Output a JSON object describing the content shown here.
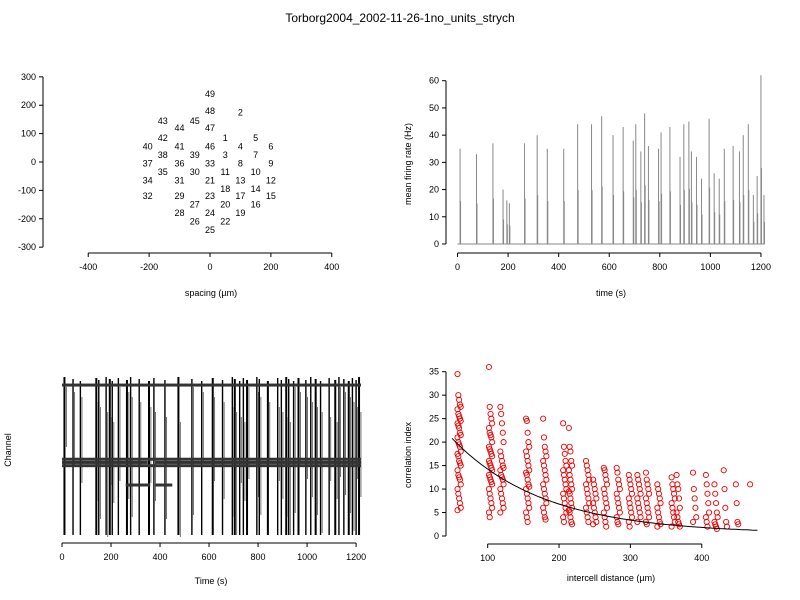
{
  "figure": {
    "title": "Torborg2004_2002-11-26-1no_units_strych"
  },
  "chart_data": [
    {
      "id": "layout",
      "type": "scatter",
      "title": "",
      "xlabel": "spacing (µm)",
      "ylabel": "",
      "xlim": [
        -450,
        450
      ],
      "ylim": [
        -310,
        310
      ],
      "xticks": [
        -400,
        -200,
        0,
        200,
        400
      ],
      "yticks": [
        -300,
        -200,
        -100,
        0,
        100,
        200,
        300
      ],
      "electrodes": [
        {
          "label": "49",
          "x": 0,
          "y": 240
        },
        {
          "label": "48",
          "x": 0,
          "y": 180
        },
        {
          "label": "2",
          "x": 100,
          "y": 175
        },
        {
          "label": "45",
          "x": -50,
          "y": 145
        },
        {
          "label": "43",
          "x": -155,
          "y": 145
        },
        {
          "label": "44",
          "x": -100,
          "y": 120
        },
        {
          "label": "47",
          "x": 0,
          "y": 120
        },
        {
          "label": "1",
          "x": 50,
          "y": 85
        },
        {
          "label": "5",
          "x": 150,
          "y": 85
        },
        {
          "label": "42",
          "x": -155,
          "y": 85
        },
        {
          "label": "40",
          "x": -205,
          "y": 55
        },
        {
          "label": "41",
          "x": -100,
          "y": 55
        },
        {
          "label": "46",
          "x": 0,
          "y": 55
        },
        {
          "label": "4",
          "x": 100,
          "y": 55
        },
        {
          "label": "6",
          "x": 200,
          "y": 55
        },
        {
          "label": "38",
          "x": -155,
          "y": 25
        },
        {
          "label": "39",
          "x": -50,
          "y": 25
        },
        {
          "label": "3",
          "x": 50,
          "y": 25
        },
        {
          "label": "7",
          "x": 150,
          "y": 25
        },
        {
          "label": "37",
          "x": -205,
          "y": -5
        },
        {
          "label": "36",
          "x": -100,
          "y": -5
        },
        {
          "label": "33",
          "x": 0,
          "y": -5
        },
        {
          "label": "8",
          "x": 100,
          "y": -5
        },
        {
          "label": "9",
          "x": 200,
          "y": -5
        },
        {
          "label": "35",
          "x": -155,
          "y": -35
        },
        {
          "label": "30",
          "x": -50,
          "y": -35
        },
        {
          "label": "11",
          "x": 50,
          "y": -35
        },
        {
          "label": "10",
          "x": 150,
          "y": -35
        },
        {
          "label": "34",
          "x": -205,
          "y": -65
        },
        {
          "label": "31",
          "x": -100,
          "y": -65
        },
        {
          "label": "21",
          "x": 0,
          "y": -65
        },
        {
          "label": "13",
          "x": 100,
          "y": -65
        },
        {
          "label": "12",
          "x": 200,
          "y": -65
        },
        {
          "label": "18",
          "x": 50,
          "y": -95
        },
        {
          "label": "14",
          "x": 150,
          "y": -95
        },
        {
          "label": "32",
          "x": -205,
          "y": -120
        },
        {
          "label": "29",
          "x": -100,
          "y": -120
        },
        {
          "label": "23",
          "x": 0,
          "y": -120
        },
        {
          "label": "17",
          "x": 100,
          "y": -120
        },
        {
          "label": "15",
          "x": 200,
          "y": -120
        },
        {
          "label": "27",
          "x": -50,
          "y": -150
        },
        {
          "label": "20",
          "x": 50,
          "y": -150
        },
        {
          "label": "16",
          "x": 150,
          "y": -150
        },
        {
          "label": "28",
          "x": -100,
          "y": -180
        },
        {
          "label": "24",
          "x": 0,
          "y": -180
        },
        {
          "label": "19",
          "x": 100,
          "y": -180
        },
        {
          "label": "26",
          "x": -50,
          "y": -210
        },
        {
          "label": "22",
          "x": 50,
          "y": -210
        },
        {
          "label": "25",
          "x": 0,
          "y": -240
        }
      ]
    },
    {
      "id": "rate",
      "type": "line",
      "title": "",
      "xlabel": "time (s)",
      "ylabel": "mean firing rate (Hz)",
      "xlim": [
        -10,
        1220
      ],
      "ylim": [
        0,
        61
      ],
      "xticks": [
        0,
        200,
        400,
        600,
        800,
        1000,
        1200
      ],
      "yticks": [
        0,
        10,
        20,
        30,
        40,
        50,
        60
      ],
      "color": "#888888",
      "bursts": [
        [
          10,
          35
        ],
        [
          75,
          33
        ],
        [
          140,
          37
        ],
        [
          180,
          20
        ],
        [
          195,
          16
        ],
        [
          205,
          15
        ],
        [
          265,
          37
        ],
        [
          315,
          40
        ],
        [
          355,
          35
        ],
        [
          420,
          35
        ],
        [
          475,
          44
        ],
        [
          530,
          44
        ],
        [
          570,
          47
        ],
        [
          615,
          40
        ],
        [
          655,
          43
        ],
        [
          695,
          38
        ],
        [
          705,
          44
        ],
        [
          725,
          34
        ],
        [
          740,
          48
        ],
        [
          755,
          36
        ],
        [
          795,
          35
        ],
        [
          805,
          41
        ],
        [
          840,
          43
        ],
        [
          880,
          32
        ],
        [
          895,
          44
        ],
        [
          915,
          45
        ],
        [
          925,
          34
        ],
        [
          945,
          32
        ],
        [
          965,
          24
        ],
        [
          995,
          46
        ],
        [
          1015,
          26
        ],
        [
          1035,
          24
        ],
        [
          1055,
          35
        ],
        [
          1090,
          36
        ],
        [
          1115,
          34
        ],
        [
          1130,
          40
        ],
        [
          1150,
          44
        ],
        [
          1170,
          18
        ],
        [
          1185,
          25
        ],
        [
          1200,
          62
        ],
        [
          1212,
          18
        ]
      ]
    },
    {
      "id": "raster",
      "type": "heatmap",
      "title": "",
      "xlabel": "Time (s)",
      "ylabel": "Channel",
      "xlim": [
        0,
        1220
      ],
      "xticks": [
        0,
        200,
        400,
        600,
        800,
        1000,
        1200
      ],
      "n_channels": 49,
      "burst_times": [
        10,
        45,
        75,
        140,
        150,
        180,
        195,
        205,
        230,
        265,
        280,
        315,
        355,
        375,
        420,
        475,
        530,
        570,
        615,
        655,
        695,
        705,
        725,
        740,
        755,
        795,
        805,
        840,
        880,
        895,
        915,
        925,
        945,
        965,
        995,
        1015,
        1035,
        1055,
        1090,
        1115,
        1130,
        1150,
        1170,
        1185,
        1200,
        1212
      ],
      "active_channels": [
        {
          "channel": 3,
          "segments": [
            [
              0,
              1220
            ]
          ]
        },
        {
          "channel": 26,
          "segments": [
            [
              0,
              1220
            ]
          ]
        },
        {
          "channel": 27,
          "segments": [
            [
              0,
              350
            ],
            [
              380,
              1220
            ]
          ]
        },
        {
          "channel": 28,
          "segments": [
            [
              0,
              1220
            ]
          ]
        },
        {
          "channel": 34,
          "segments": [
            [
              260,
              360
            ],
            [
              380,
              450
            ]
          ]
        }
      ]
    },
    {
      "id": "correlation",
      "type": "scatter",
      "title": "",
      "xlabel": "intercell distance (µm)",
      "ylabel": "correlation index",
      "xlim": [
        50,
        490
      ],
      "ylim": [
        0,
        36
      ],
      "xticks": [
        100,
        200,
        300,
        400
      ],
      "yticks": [
        0,
        5,
        10,
        15,
        20,
        25,
        30,
        35
      ],
      "point_color": "#ee0000",
      "fit_color": "#000000",
      "distances": [
        60,
        104,
        120,
        156,
        174,
        180,
        208,
        216,
        240,
        250,
        265,
        283,
        300,
        312,
        324,
        340,
        360,
        367,
        390,
        408,
        420,
        433,
        450,
        470
      ],
      "columns": [
        {
          "x": 60,
          "values": [
            34.5,
            30,
            29,
            28,
            27.5,
            27,
            26,
            25.5,
            25,
            24.5,
            24,
            23.5,
            23,
            22,
            21.5,
            21,
            20,
            19.5,
            19,
            18,
            17.5,
            17,
            16,
            15.5,
            15,
            14,
            13,
            12.5,
            12,
            11,
            10,
            9,
            8,
            7,
            6,
            5.5
          ]
        },
        {
          "x": 104,
          "values": [
            36,
            27.5,
            26,
            25,
            24,
            23,
            22,
            21.5,
            21,
            20,
            19,
            18.5,
            18,
            17.5,
            17,
            16,
            15.5,
            15,
            14.5,
            14,
            13,
            12.5,
            12,
            11.5,
            11,
            10,
            9,
            8,
            7,
            6,
            5,
            4
          ]
        },
        {
          "x": 120,
          "values": [
            27.5,
            26,
            24,
            22,
            20,
            18,
            17,
            16,
            15,
            14.5,
            14,
            13,
            12.5,
            12,
            11,
            10,
            9,
            8,
            7,
            6,
            5
          ]
        },
        {
          "x": 156,
          "values": [
            25,
            24.5,
            22,
            20,
            19,
            18,
            17,
            16,
            15,
            14,
            13.5,
            13,
            12,
            11,
            10.5,
            10,
            9,
            8,
            7,
            6,
            5,
            4,
            3
          ]
        },
        {
          "x": 180,
          "values": [
            25,
            21,
            19,
            18,
            17,
            16,
            15,
            14,
            13,
            12,
            11,
            10,
            9,
            8,
            7,
            6,
            5,
            4,
            3.5
          ]
        },
        {
          "x": 208,
          "values": [
            24,
            19,
            17.5,
            16,
            15,
            14,
            13,
            12,
            11,
            10,
            9,
            8,
            7,
            6,
            5,
            4,
            3
          ]
        },
        {
          "x": 216,
          "values": [
            23,
            19,
            18,
            16,
            15,
            14,
            13,
            12,
            11,
            10,
            9.5,
            9,
            8,
            7,
            6,
            5.5,
            5,
            4,
            3,
            2.5
          ]
        },
        {
          "x": 240,
          "values": [
            16,
            15,
            14,
            13,
            12,
            11,
            10,
            9,
            8,
            7,
            6,
            5,
            4,
            3
          ]
        },
        {
          "x": 250,
          "values": [
            12,
            11,
            10,
            9,
            8,
            7,
            6,
            5,
            4,
            3,
            2.5
          ]
        },
        {
          "x": 265,
          "values": [
            14.5,
            14,
            13,
            12,
            11,
            10,
            9,
            8,
            7,
            6,
            5,
            4,
            3,
            2
          ]
        },
        {
          "x": 283,
          "values": [
            14.5,
            13.5,
            12,
            11,
            10,
            9,
            8,
            7,
            6,
            5,
            4,
            3,
            2.5
          ]
        },
        {
          "x": 300,
          "values": [
            13,
            12,
            11,
            10,
            9,
            8,
            7,
            6,
            5,
            4,
            3,
            2
          ]
        },
        {
          "x": 312,
          "values": [
            13,
            12,
            11,
            10,
            9,
            8,
            7,
            6,
            5,
            4,
            3
          ]
        },
        {
          "x": 324,
          "values": [
            13.5,
            12,
            11,
            10,
            9,
            8,
            7,
            6,
            5,
            4,
            3,
            2.5
          ]
        },
        {
          "x": 340,
          "values": [
            11,
            10,
            9,
            8,
            7,
            6,
            5,
            4,
            3,
            2.5,
            2
          ]
        },
        {
          "x": 360,
          "values": [
            12.5,
            11,
            10,
            9,
            8,
            7,
            6,
            5,
            4,
            3,
            2
          ]
        },
        {
          "x": 367,
          "values": [
            13,
            11,
            10,
            8,
            6,
            5,
            4,
            3,
            2.5,
            2
          ]
        },
        {
          "x": 390,
          "values": [
            13.5,
            10,
            8,
            6,
            4,
            3
          ]
        },
        {
          "x": 408,
          "values": [
            13,
            11,
            9,
            7,
            5,
            4,
            3,
            2
          ]
        },
        {
          "x": 420,
          "values": [
            11,
            9,
            7,
            5,
            4,
            3,
            2.5,
            2,
            1.5
          ]
        },
        {
          "x": 433,
          "values": [
            14,
            10,
            6,
            3,
            2
          ]
        },
        {
          "x": 450,
          "values": [
            11,
            7,
            3,
            2.5
          ]
        },
        {
          "x": 470,
          "values": [
            11
          ]
        }
      ],
      "fit": {
        "model": "exponential",
        "a": 30.0,
        "b": 0.0078,
        "c": 0.5
      }
    }
  ]
}
